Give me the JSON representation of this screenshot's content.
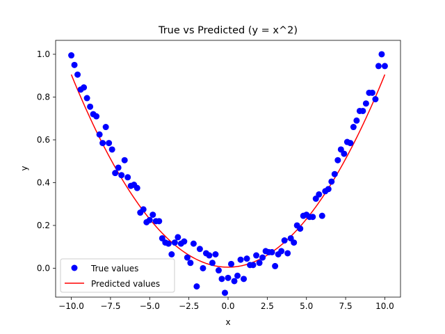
{
  "chart_data": {
    "type": "scatter",
    "title": "True vs Predicted (y = x^2)",
    "xlabel": "x",
    "ylabel": "y",
    "xlim": [
      -11.0,
      11.0
    ],
    "ylim": [
      -0.135,
      1.065
    ],
    "x_ticks": [
      -10.0,
      -7.5,
      -5.0,
      -2.5,
      0.0,
      2.5,
      5.0,
      7.5,
      10.0
    ],
    "x_tick_labels": [
      "−10.0",
      "−7.5",
      "−5.0",
      "−2.5",
      "0.0",
      "2.5",
      "5.0",
      "7.5",
      "10.0"
    ],
    "y_ticks": [
      0.0,
      0.2,
      0.4,
      0.6,
      0.8,
      1.0
    ],
    "y_tick_labels": [
      "0.0",
      "0.2",
      "0.4",
      "0.6",
      "0.8",
      "1.0"
    ],
    "grid": false,
    "legend_position": "lower-left",
    "series": [
      {
        "name": "True values",
        "kind": "scatter",
        "color": "#0000ff",
        "points": [
          [
            -10.0,
            0.995
          ],
          [
            -9.8,
            0.95
          ],
          [
            -9.6,
            0.905
          ],
          [
            -9.4,
            0.835
          ],
          [
            -9.2,
            0.845
          ],
          [
            -9.0,
            0.795
          ],
          [
            -8.8,
            0.755
          ],
          [
            -8.6,
            0.72
          ],
          [
            -8.4,
            0.71
          ],
          [
            -8.2,
            0.625
          ],
          [
            -8.0,
            0.585
          ],
          [
            -7.8,
            0.66
          ],
          [
            -7.6,
            0.585
          ],
          [
            -7.4,
            0.555
          ],
          [
            -7.2,
            0.445
          ],
          [
            -7.0,
            0.47
          ],
          [
            -6.8,
            0.435
          ],
          [
            -6.6,
            0.505
          ],
          [
            -6.4,
            0.425
          ],
          [
            -6.2,
            0.385
          ],
          [
            -6.0,
            0.39
          ],
          [
            -5.8,
            0.375
          ],
          [
            -5.6,
            0.26
          ],
          [
            -5.4,
            0.275
          ],
          [
            -5.2,
            0.215
          ],
          [
            -5.0,
            0.225
          ],
          [
            -4.8,
            0.25
          ],
          [
            -4.6,
            0.22
          ],
          [
            -4.4,
            0.22
          ],
          [
            -4.2,
            0.14
          ],
          [
            -4.0,
            0.12
          ],
          [
            -3.8,
            0.115
          ],
          [
            -3.6,
            0.065
          ],
          [
            -3.4,
            0.12
          ],
          [
            -3.2,
            0.145
          ],
          [
            -3.0,
            0.115
          ],
          [
            -2.8,
            0.125
          ],
          [
            -2.6,
            0.05
          ],
          [
            -2.4,
            0.025
          ],
          [
            -2.2,
            0.115
          ],
          [
            -2.0,
            -0.085
          ],
          [
            -1.8,
            0.09
          ],
          [
            -1.6,
            0.0
          ],
          [
            -1.4,
            0.07
          ],
          [
            -1.2,
            0.06
          ],
          [
            -1.0,
            0.025
          ],
          [
            -0.8,
            0.065
          ],
          [
            -0.6,
            -0.01
          ],
          [
            -0.4,
            -0.05
          ],
          [
            -0.2,
            -0.115
          ],
          [
            0.0,
            -0.045
          ],
          [
            0.2,
            0.02
          ],
          [
            0.4,
            -0.06
          ],
          [
            0.6,
            -0.035
          ],
          [
            0.8,
            0.04
          ],
          [
            1.0,
            -0.05
          ],
          [
            1.2,
            0.045
          ],
          [
            1.4,
            0.015
          ],
          [
            1.6,
            0.015
          ],
          [
            1.8,
            0.06
          ],
          [
            2.0,
            0.025
          ],
          [
            2.2,
            0.05
          ],
          [
            2.4,
            0.08
          ],
          [
            2.6,
            0.075
          ],
          [
            2.8,
            0.075
          ],
          [
            3.0,
            0.01
          ],
          [
            3.2,
            0.065
          ],
          [
            3.4,
            0.08
          ],
          [
            3.6,
            0.13
          ],
          [
            3.8,
            0.07
          ],
          [
            4.0,
            0.14
          ],
          [
            4.2,
            0.12
          ],
          [
            4.4,
            0.2
          ],
          [
            4.6,
            0.185
          ],
          [
            4.8,
            0.245
          ],
          [
            5.0,
            0.25
          ],
          [
            5.2,
            0.24
          ],
          [
            5.4,
            0.24
          ],
          [
            5.6,
            0.325
          ],
          [
            5.8,
            0.345
          ],
          [
            6.0,
            0.245
          ],
          [
            6.2,
            0.36
          ],
          [
            6.4,
            0.37
          ],
          [
            6.6,
            0.405
          ],
          [
            6.8,
            0.44
          ],
          [
            7.0,
            0.505
          ],
          [
            7.2,
            0.555
          ],
          [
            7.4,
            0.535
          ],
          [
            7.6,
            0.59
          ],
          [
            7.8,
            0.585
          ],
          [
            8.0,
            0.66
          ],
          [
            8.2,
            0.69
          ],
          [
            8.4,
            0.735
          ],
          [
            8.6,
            0.735
          ],
          [
            8.8,
            0.77
          ],
          [
            9.0,
            0.82
          ],
          [
            9.2,
            0.82
          ],
          [
            9.4,
            0.79
          ],
          [
            9.6,
            0.945
          ],
          [
            9.8,
            1.0
          ],
          [
            10.0,
            0.945
          ]
        ]
      },
      {
        "name": "Predicted values",
        "kind": "line",
        "color": "#ff0000",
        "x_range": [
          -10.0,
          10.0
        ],
        "formula": "0.9 * (x/10)^2 + 0.005"
      }
    ]
  }
}
